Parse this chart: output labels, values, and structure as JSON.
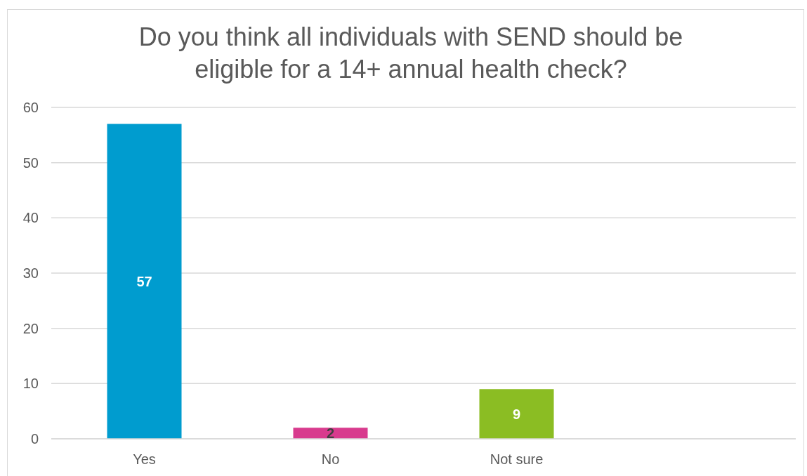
{
  "chart_data": {
    "type": "bar",
    "title": "Do you think all individuals with SEND should be eligible for a 14+ annual health check?",
    "categories": [
      "Yes",
      "No",
      "Not sure",
      null
    ],
    "values": [
      57,
      2,
      9,
      null
    ],
    "colors": [
      "#009ccf",
      "#d83b8e",
      "#8bbd23",
      null
    ],
    "ylim": [
      0,
      60
    ],
    "yticks": [
      0,
      10,
      20,
      30,
      40,
      50,
      60
    ],
    "grid": "y",
    "data_labels": true
  }
}
